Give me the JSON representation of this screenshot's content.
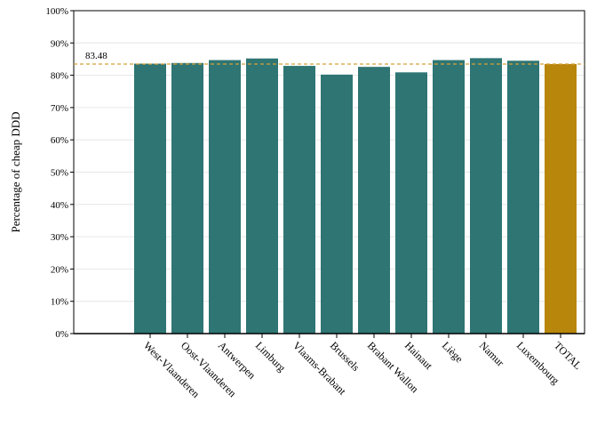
{
  "chart_data": {
    "type": "bar",
    "title": "",
    "xlabel": "",
    "ylabel": "Percentage of cheap DDD",
    "ylim": [
      0,
      100
    ],
    "y_ticks": [
      "0%",
      "10%",
      "20%",
      "30%",
      "40%",
      "50%",
      "60%",
      "70%",
      "80%",
      "90%",
      "100%"
    ],
    "categories": [
      "West-Vlaanderen",
      "Oost-Vlaanderen",
      "Antwerpen",
      "Limburg",
      "Vlaams-Brabant",
      "Brussels",
      "Brabant Wallon",
      "Hainaut",
      "Liège",
      "Namur",
      "Luxembourg",
      "TOTAL"
    ],
    "values": [
      83.6,
      83.8,
      84.7,
      85.2,
      82.9,
      80.2,
      82.6,
      80.9,
      84.7,
      85.3,
      84.5,
      83.48
    ],
    "reference_line": {
      "value": 83.48,
      "label": "83.48"
    },
    "colors": {
      "bar": "#2e7573",
      "total": "#b8860b",
      "reference": "#d4a03a",
      "grid": "#e6e6e6"
    },
    "grid": true
  }
}
